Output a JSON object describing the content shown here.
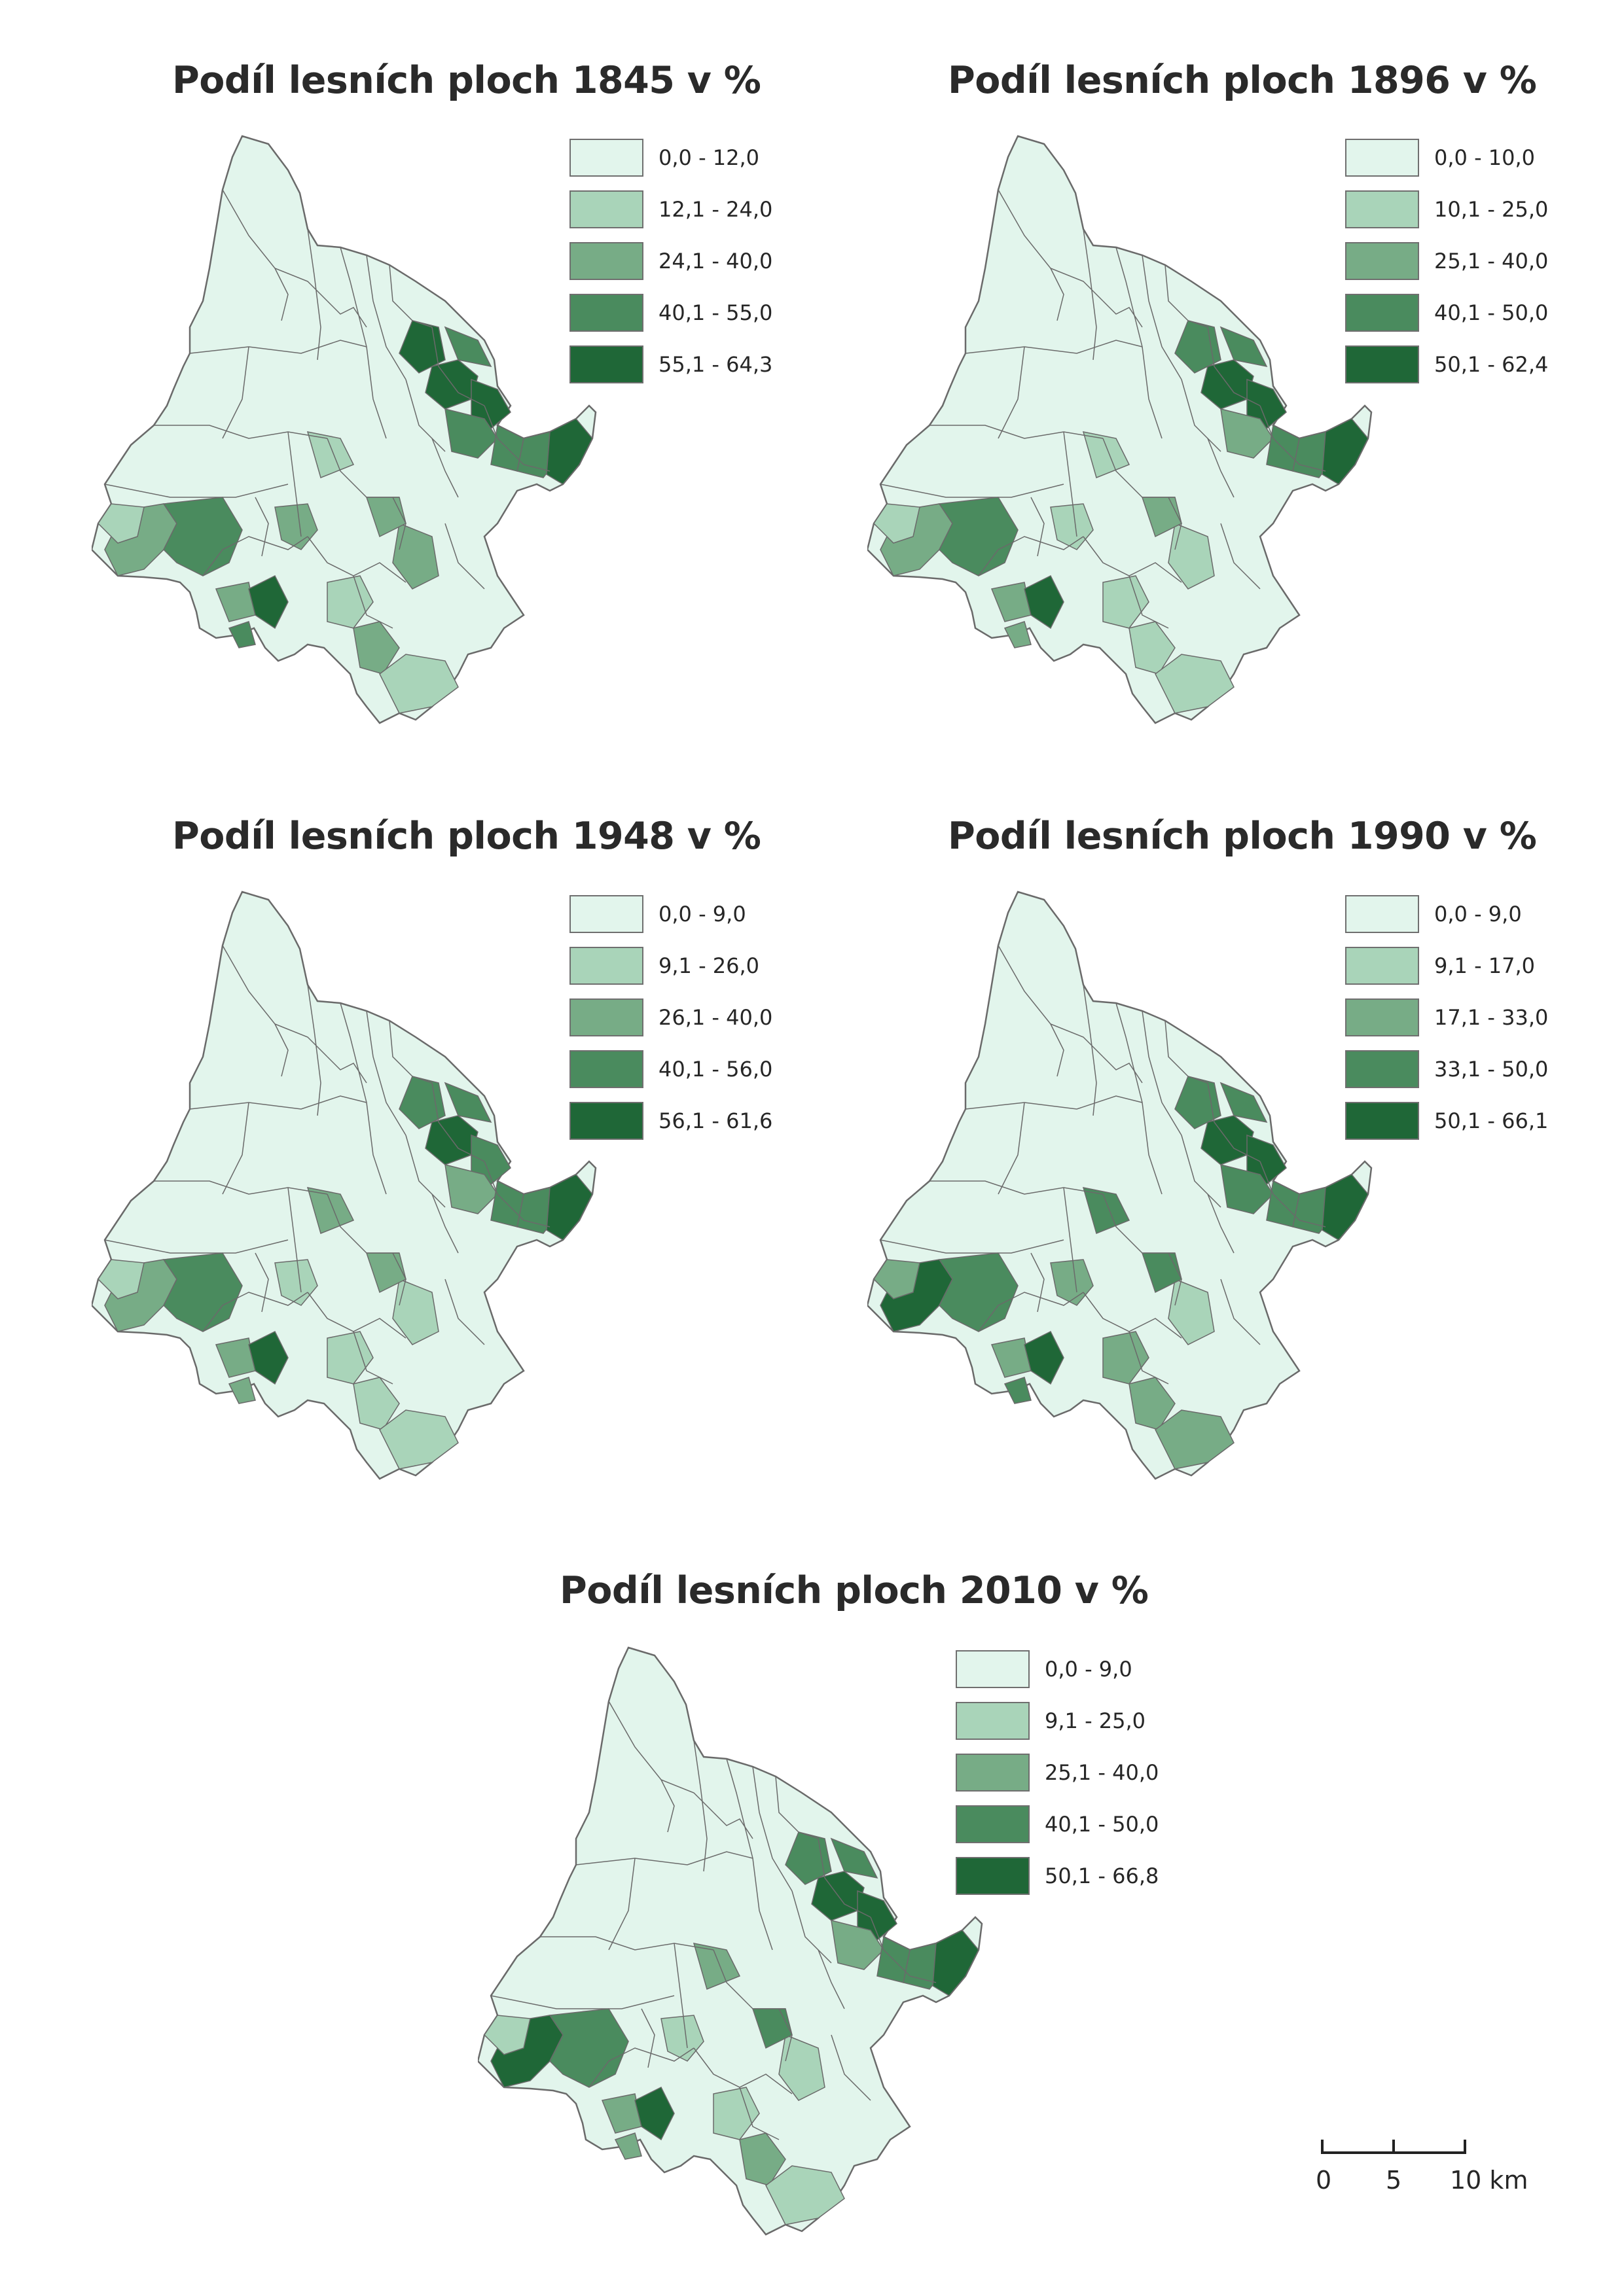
{
  "colors": {
    "class1": "#e2f5ec",
    "class2": "#a9d4b9",
    "class3": "#77ac86",
    "class4": "#4a8b5e",
    "class5": "#1f6737",
    "outline": "#6a6a6a"
  },
  "maps": [
    {
      "title": "Podíl lesních ploch 1845 v %",
      "legend": [
        "0,0 - 12,0",
        "12,1 - 24,0",
        "24,1 - 40,0",
        "40,1 - 55,0",
        "55,1 - 64,3"
      ],
      "region_classes": [
        3,
        2,
        4,
        5,
        5,
        5,
        4,
        4,
        4,
        4,
        5,
        3,
        3,
        4,
        3,
        2,
        3,
        2,
        2,
        3,
        5
      ]
    },
    {
      "title": "Podíl lesních ploch 1896 v %",
      "legend": [
        "0,0 - 10,0",
        "10,1 - 25,0",
        "25,1 - 40,0",
        "40,1 - 50,0",
        "50,1 - 62,4"
      ],
      "region_classes": [
        3,
        2,
        4,
        5,
        5,
        4,
        4,
        3,
        4,
        4,
        5,
        2,
        2,
        3,
        3,
        2,
        2,
        2,
        2,
        3,
        5
      ]
    },
    {
      "title": "Podíl lesních ploch 1948 v %",
      "legend": [
        "0,0 - 9,0",
        "9,1 - 26,0",
        "26,1 - 40,0",
        "40,1 - 56,0",
        "56,1 - 61,6"
      ],
      "region_classes": [
        3,
        2,
        4,
        5,
        4,
        4,
        4,
        3,
        4,
        4,
        5,
        2,
        2,
        3,
        3,
        2,
        2,
        2,
        3,
        3,
        5
      ]
    },
    {
      "title": "Podíl lesních ploch 1990 v %",
      "legend": [
        "0,0 - 9,0",
        "9,1 - 17,0",
        "17,1 - 33,0",
        "33,1 - 50,0",
        "50,1 - 66,1"
      ],
      "region_classes": [
        5,
        3,
        4,
        5,
        5,
        4,
        4,
        4,
        4,
        4,
        5,
        3,
        2,
        4,
        3,
        3,
        3,
        3,
        4,
        4,
        5
      ]
    },
    {
      "title": "Podíl lesních ploch 2010 v %",
      "legend": [
        "0,0 - 9,0",
        "9,1 - 25,0",
        "25,1 - 40,0",
        "40,1 - 50,0",
        "50,1 - 66,8"
      ],
      "region_classes": [
        5,
        2,
        4,
        5,
        5,
        4,
        4,
        3,
        4,
        4,
        5,
        2,
        2,
        3,
        3,
        2,
        3,
        2,
        3,
        4,
        5
      ]
    }
  ],
  "scale_bar": {
    "labels": [
      "0",
      "5",
      "10 km"
    ]
  }
}
